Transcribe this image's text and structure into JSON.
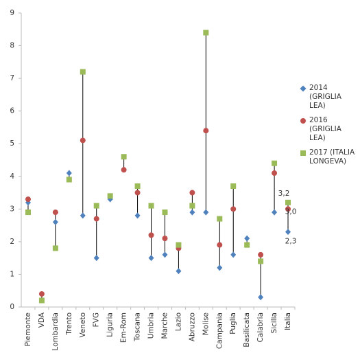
{
  "chart_data": {
    "type": "hilo",
    "categories": [
      "Piemonte",
      "VDA",
      "Lombardia",
      "Trento",
      "Veneto",
      "FVG",
      "Liguria",
      "Em-Rom",
      "Toscana",
      "Umbria",
      "Marche",
      "Lazio",
      "Abruzzo",
      "Molise",
      "Campania",
      "Puglia",
      "Basilicata",
      "Calabria",
      "Sicilia",
      "Italia"
    ],
    "series": [
      {
        "name": "2014 (GRIGLIA LEA)",
        "color": "#4f81bd",
        "marker": "diamond",
        "values": [
          3.2,
          null,
          2.6,
          4.1,
          2.8,
          1.5,
          3.3,
          null,
          2.8,
          1.5,
          1.6,
          1.1,
          2.9,
          2.9,
          1.2,
          1.6,
          2.1,
          0.3,
          2.9,
          2.3
        ],
        "value_labels": [
          null,
          null,
          null,
          null,
          null,
          null,
          null,
          null,
          null,
          null,
          null,
          null,
          null,
          null,
          null,
          null,
          null,
          null,
          null,
          "2,3"
        ]
      },
      {
        "name": "2016 (GRIGLIA LEA)",
        "color": "#c0504d",
        "marker": "circle",
        "values": [
          3.3,
          0.4,
          2.9,
          null,
          5.1,
          2.7,
          null,
          4.2,
          3.5,
          2.2,
          2.1,
          1.8,
          3.5,
          5.4,
          1.9,
          3.0,
          null,
          1.6,
          4.1,
          3.0
        ],
        "value_labels": [
          null,
          null,
          null,
          null,
          null,
          null,
          null,
          null,
          null,
          null,
          null,
          null,
          null,
          null,
          null,
          null,
          null,
          null,
          null,
          "3,0"
        ]
      },
      {
        "name": "2017 (ITALIA LONGEVA)",
        "color": "#9bbb59",
        "marker": "square",
        "values": [
          2.9,
          0.2,
          1.8,
          3.9,
          7.2,
          3.1,
          3.4,
          4.6,
          3.7,
          3.1,
          2.9,
          1.9,
          3.1,
          8.4,
          2.7,
          3.7,
          1.9,
          1.4,
          4.4,
          3.2
        ],
        "value_labels": [
          null,
          null,
          null,
          null,
          null,
          null,
          null,
          null,
          null,
          null,
          null,
          null,
          null,
          null,
          null,
          null,
          null,
          null,
          null,
          "3,2"
        ]
      }
    ],
    "ylim": [
      0,
      9
    ],
    "yticks": [
      0,
      1,
      2,
      3,
      4,
      5,
      6,
      7,
      8,
      9
    ],
    "grid": false,
    "legend": "right"
  }
}
